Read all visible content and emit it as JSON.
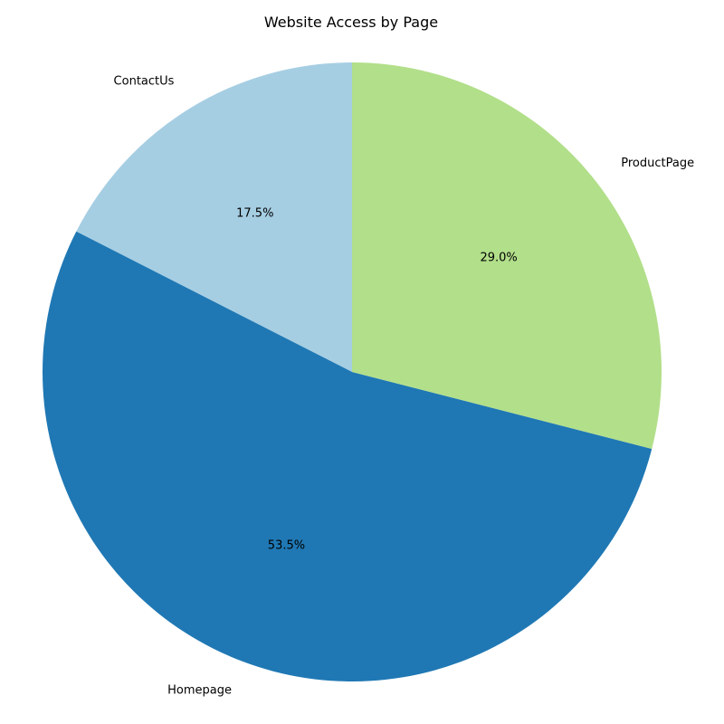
{
  "chart_data": {
    "type": "pie",
    "title": "Website Access by Page",
    "start_angle_deg": 90,
    "direction": "counterclockwise",
    "slices": [
      {
        "label": "ContactUs",
        "value": 17.5,
        "pct_text": "17.5%",
        "color": "#a6cee3"
      },
      {
        "label": "Homepage",
        "value": 53.5,
        "pct_text": "53.5%",
        "color": "#1f78b4"
      },
      {
        "label": "ProductPage",
        "value": 29.0,
        "pct_text": "29.0%",
        "color": "#b2df8a"
      }
    ]
  }
}
